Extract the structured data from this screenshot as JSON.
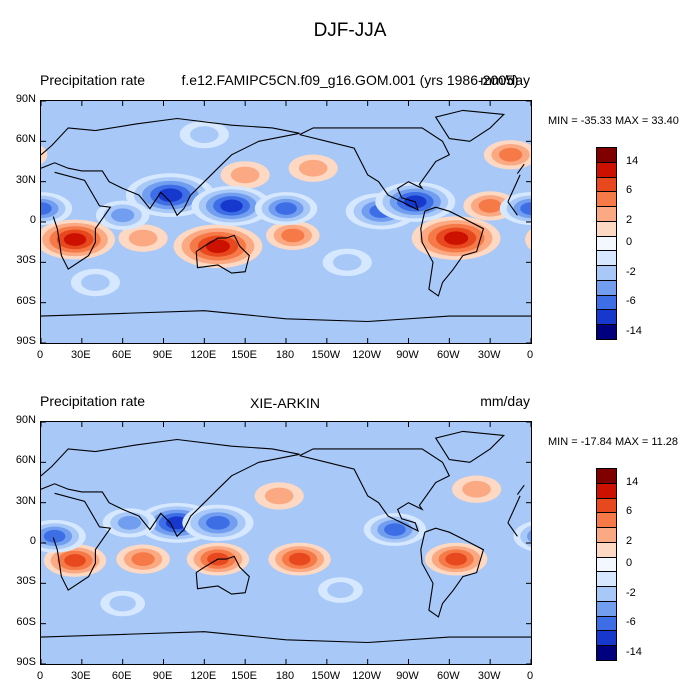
{
  "figure": {
    "title": "DJF-JJA"
  },
  "panels": [
    {
      "left_title": "Precipitation rate",
      "center_title": "f.e12.FAMIPC5CN.f09_g16.GOM.001 (yrs 1986-2005)",
      "units": "mm/day",
      "minmax": "MIN = -35.33 MAX =  33.40"
    },
    {
      "left_title": "Precipitation rate",
      "center_title": "XIE-ARKIN",
      "units": "mm/day",
      "minmax": "MIN = -17.84 MAX =  11.28"
    }
  ],
  "axes": {
    "lat_labels": [
      "90N",
      "60N",
      "30N",
      "0",
      "30S",
      "60S",
      "90S"
    ],
    "lon_labels": [
      "0",
      "30E",
      "60E",
      "90E",
      "120E",
      "150E",
      "180",
      "150W",
      "120W",
      "90W",
      "60W",
      "30W",
      "0"
    ]
  },
  "colorbar": {
    "colors": [
      "#800000",
      "#cc1100",
      "#e8481e",
      "#f57a48",
      "#fba982",
      "#fdd8c2",
      "#f3f8ff",
      "#d6e8ff",
      "#a8c8f8",
      "#729ef0",
      "#3e6ee6",
      "#1738cc",
      "#00007f"
    ],
    "labels": [
      "14",
      "6",
      "2",
      "0",
      "-2",
      "-6",
      "-14"
    ]
  },
  "chart_data": [
    {
      "type": "heatmap",
      "title": "f.e12.FAMIPC5CN.f09_g16.GOM.001 (yrs 1986-2005)",
      "variable": "Precipitation rate",
      "units": "mm/day",
      "xlim": [
        0,
        360
      ],
      "ylim": [
        -90,
        90
      ],
      "min": -35.33,
      "max": 33.4,
      "levels": [
        -14,
        -10,
        -6,
        -4,
        -2,
        -1,
        0,
        1,
        2,
        4,
        6,
        10,
        14
      ],
      "anomalies": [
        {
          "lon": 25,
          "lat": -13,
          "value": 10
        },
        {
          "lon": 130,
          "lat": -18,
          "value": 12
        },
        {
          "lon": 305,
          "lat": -12,
          "value": 12
        },
        {
          "lon": 75,
          "lat": -12,
          "value": 3
        },
        {
          "lon": 185,
          "lat": -10,
          "value": 4
        },
        {
          "lon": 150,
          "lat": 35,
          "value": 3
        },
        {
          "lon": 200,
          "lat": 40,
          "value": 3
        },
        {
          "lon": 345,
          "lat": 50,
          "value": 4
        },
        {
          "lon": 330,
          "lat": 12,
          "value": 4
        },
        {
          "lon": 95,
          "lat": 20,
          "value": -12
        },
        {
          "lon": 140,
          "lat": 12,
          "value": -10
        },
        {
          "lon": 180,
          "lat": 10,
          "value": -6
        },
        {
          "lon": 250,
          "lat": 8,
          "value": -8
        },
        {
          "lon": 275,
          "lat": 15,
          "value": -10
        },
        {
          "lon": 0,
          "lat": 10,
          "value": -6
        },
        {
          "lon": 120,
          "lat": 65,
          "value": -3
        },
        {
          "lon": 60,
          "lat": 5,
          "value": -4
        },
        {
          "lon": 225,
          "lat": -30,
          "value": -3
        },
        {
          "lon": 40,
          "lat": -45,
          "value": -3
        }
      ]
    },
    {
      "type": "heatmap",
      "title": "XIE-ARKIN",
      "variable": "Precipitation rate",
      "units": "mm/day",
      "xlim": [
        0,
        360
      ],
      "ylim": [
        -90,
        90
      ],
      "min": -17.84,
      "max": 11.28,
      "levels": [
        -14,
        -10,
        -6,
        -4,
        -2,
        -1,
        0,
        1,
        2,
        4,
        6,
        10,
        14
      ],
      "anomalies": [
        {
          "lon": 25,
          "lat": -13,
          "value": 6
        },
        {
          "lon": 130,
          "lat": -12,
          "value": 6
        },
        {
          "lon": 190,
          "lat": -12,
          "value": 6
        },
        {
          "lon": 305,
          "lat": -12,
          "value": 6
        },
        {
          "lon": 75,
          "lat": -12,
          "value": 4
        },
        {
          "lon": 175,
          "lat": 35,
          "value": 3
        },
        {
          "lon": 320,
          "lat": 40,
          "value": 3
        },
        {
          "lon": 100,
          "lat": 15,
          "value": -10
        },
        {
          "lon": 130,
          "lat": 15,
          "value": -8
        },
        {
          "lon": 260,
          "lat": 10,
          "value": -6
        },
        {
          "lon": 10,
          "lat": 5,
          "value": -6
        },
        {
          "lon": 65,
          "lat": 15,
          "value": -4
        },
        {
          "lon": 220,
          "lat": -35,
          "value": -2
        },
        {
          "lon": 60,
          "lat": -45,
          "value": -2
        }
      ]
    }
  ]
}
